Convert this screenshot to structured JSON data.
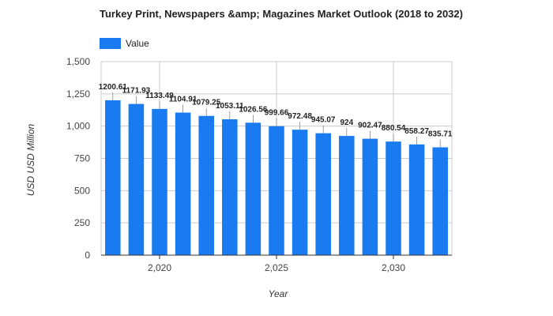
{
  "chart_data": {
    "type": "bar",
    "title": "Turkey Print, Newspapers &amp; Magazines Market Outlook (2018 to 2032)",
    "legend": {
      "labels": [
        "Value"
      ],
      "position": "top-left"
    },
    "xlabel": "Year",
    "ylabel": "USD USD Million",
    "bar_color": "#1a7bf0",
    "grid": true,
    "x": [
      2018,
      2019,
      2020,
      2021,
      2022,
      2023,
      2024,
      2025,
      2026,
      2027,
      2028,
      2029,
      2030,
      2031,
      2032
    ],
    "series": [
      {
        "name": "Value",
        "values": [
          1200.61,
          1171.93,
          1133.49,
          1104.91,
          1079.25,
          1053.11,
          1026.56,
          999.66,
          972.48,
          945.07,
          924,
          902.47,
          880.54,
          858.27,
          835.71
        ],
        "labels": [
          "1200.61",
          "1171.93",
          "1133.49",
          "1104.91",
          "1079.25",
          "1053.11",
          "1026.56",
          "999.66",
          "972.48",
          "945.07",
          "924",
          "902.47",
          "880.54",
          "858.27",
          "835.71"
        ]
      }
    ],
    "ylim": [
      0,
      1500
    ],
    "y_ticks": [
      0,
      250,
      500,
      750,
      1000,
      1250,
      1500
    ],
    "y_tick_labels": [
      "0",
      "250",
      "500",
      "750",
      "1,000",
      "1,250",
      "1,500"
    ],
    "x_ticks": [
      2020,
      2025,
      2030
    ],
    "x_tick_labels": [
      "2,020",
      "2,025",
      "2,030"
    ]
  }
}
